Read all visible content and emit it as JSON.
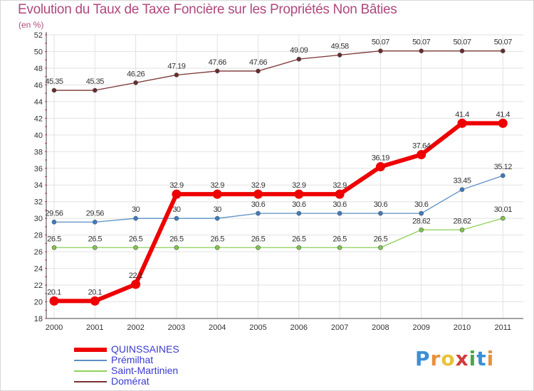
{
  "title": "Evolution du Taux de Taxe Foncière sur les Propriétés Non Bâties",
  "unit_note": "(en %)",
  "brand": {
    "letters": [
      "P",
      "r",
      "o",
      "x",
      "i",
      "t",
      "i"
    ],
    "colors": [
      "#3a8fd6",
      "#e8903a",
      "#e8c23a",
      "#d23b3b",
      "#48a848",
      "#3a8fd6",
      "#e8903a"
    ]
  },
  "chart_data": {
    "type": "line",
    "title": "Evolution du Taux de Taxe Foncière sur les Propriétés Non Bâties",
    "ylabel": "(en %)",
    "xlabel": "",
    "x": [
      2000,
      2001,
      2002,
      2003,
      2004,
      2005,
      2006,
      2007,
      2008,
      2009,
      2010,
      2011
    ],
    "ylim": [
      18,
      52
    ],
    "yticks": [
      18,
      20,
      22,
      24,
      26,
      28,
      30,
      32,
      34,
      36,
      38,
      40,
      42,
      44,
      46,
      48,
      50,
      52
    ],
    "legend_position": "bottom-left",
    "series": [
      {
        "name": "QUINSSAINES",
        "color": "#ee0000",
        "marker": "#ee0000",
        "width": 6,
        "values": [
          20.1,
          20.1,
          22.1,
          32.9,
          32.9,
          32.9,
          32.9,
          32.9,
          36.19,
          37.64,
          41.4,
          41.4
        ],
        "labels": [
          "20.1",
          "20.1",
          "22.1",
          "32.9",
          "32.9",
          "32.9",
          "32.9",
          "32.9",
          "36.19",
          "37.64",
          "41.4",
          "41.4"
        ]
      },
      {
        "name": "Prémilhat",
        "color": "#5b8fc4",
        "marker": "#3a7cc4",
        "width": 1.3,
        "values": [
          29.56,
          29.56,
          30,
          30,
          30,
          30.6,
          30.6,
          30.6,
          30.6,
          30.6,
          33.45,
          35.12
        ],
        "labels": [
          "29.56",
          "29.56",
          "30",
          "30",
          "30",
          "30.6",
          "30.6",
          "30.6",
          "30.6",
          "30.6",
          "33.45",
          "35.12"
        ]
      },
      {
        "name": "Saint-Martinien",
        "color": "#8fd15a",
        "marker": "#7ec64a",
        "width": 1.3,
        "values": [
          26.5,
          26.5,
          26.5,
          26.5,
          26.5,
          26.5,
          26.5,
          26.5,
          26.5,
          28.62,
          28.62,
          30.01
        ],
        "labels": [
          "26.5",
          "26.5",
          "26.5",
          "26.5",
          "26.5",
          "26.5",
          "26.5",
          "26.5",
          "26.5",
          "28.62",
          "28.62",
          "30.01"
        ]
      },
      {
        "name": "Domérat",
        "color": "#7a3333",
        "marker": "#6a2a2a",
        "width": 1.3,
        "values": [
          45.35,
          45.35,
          46.26,
          47.19,
          47.66,
          47.66,
          49.09,
          49.58,
          50.07,
          50.07,
          50.07,
          50.07
        ],
        "labels": [
          "45.35",
          "45.35",
          "46.26",
          "47.19",
          "47.66",
          "47.66",
          "49.09",
          "49.58",
          "50.07",
          "50.07",
          "50.07",
          "50.07"
        ]
      }
    ]
  }
}
